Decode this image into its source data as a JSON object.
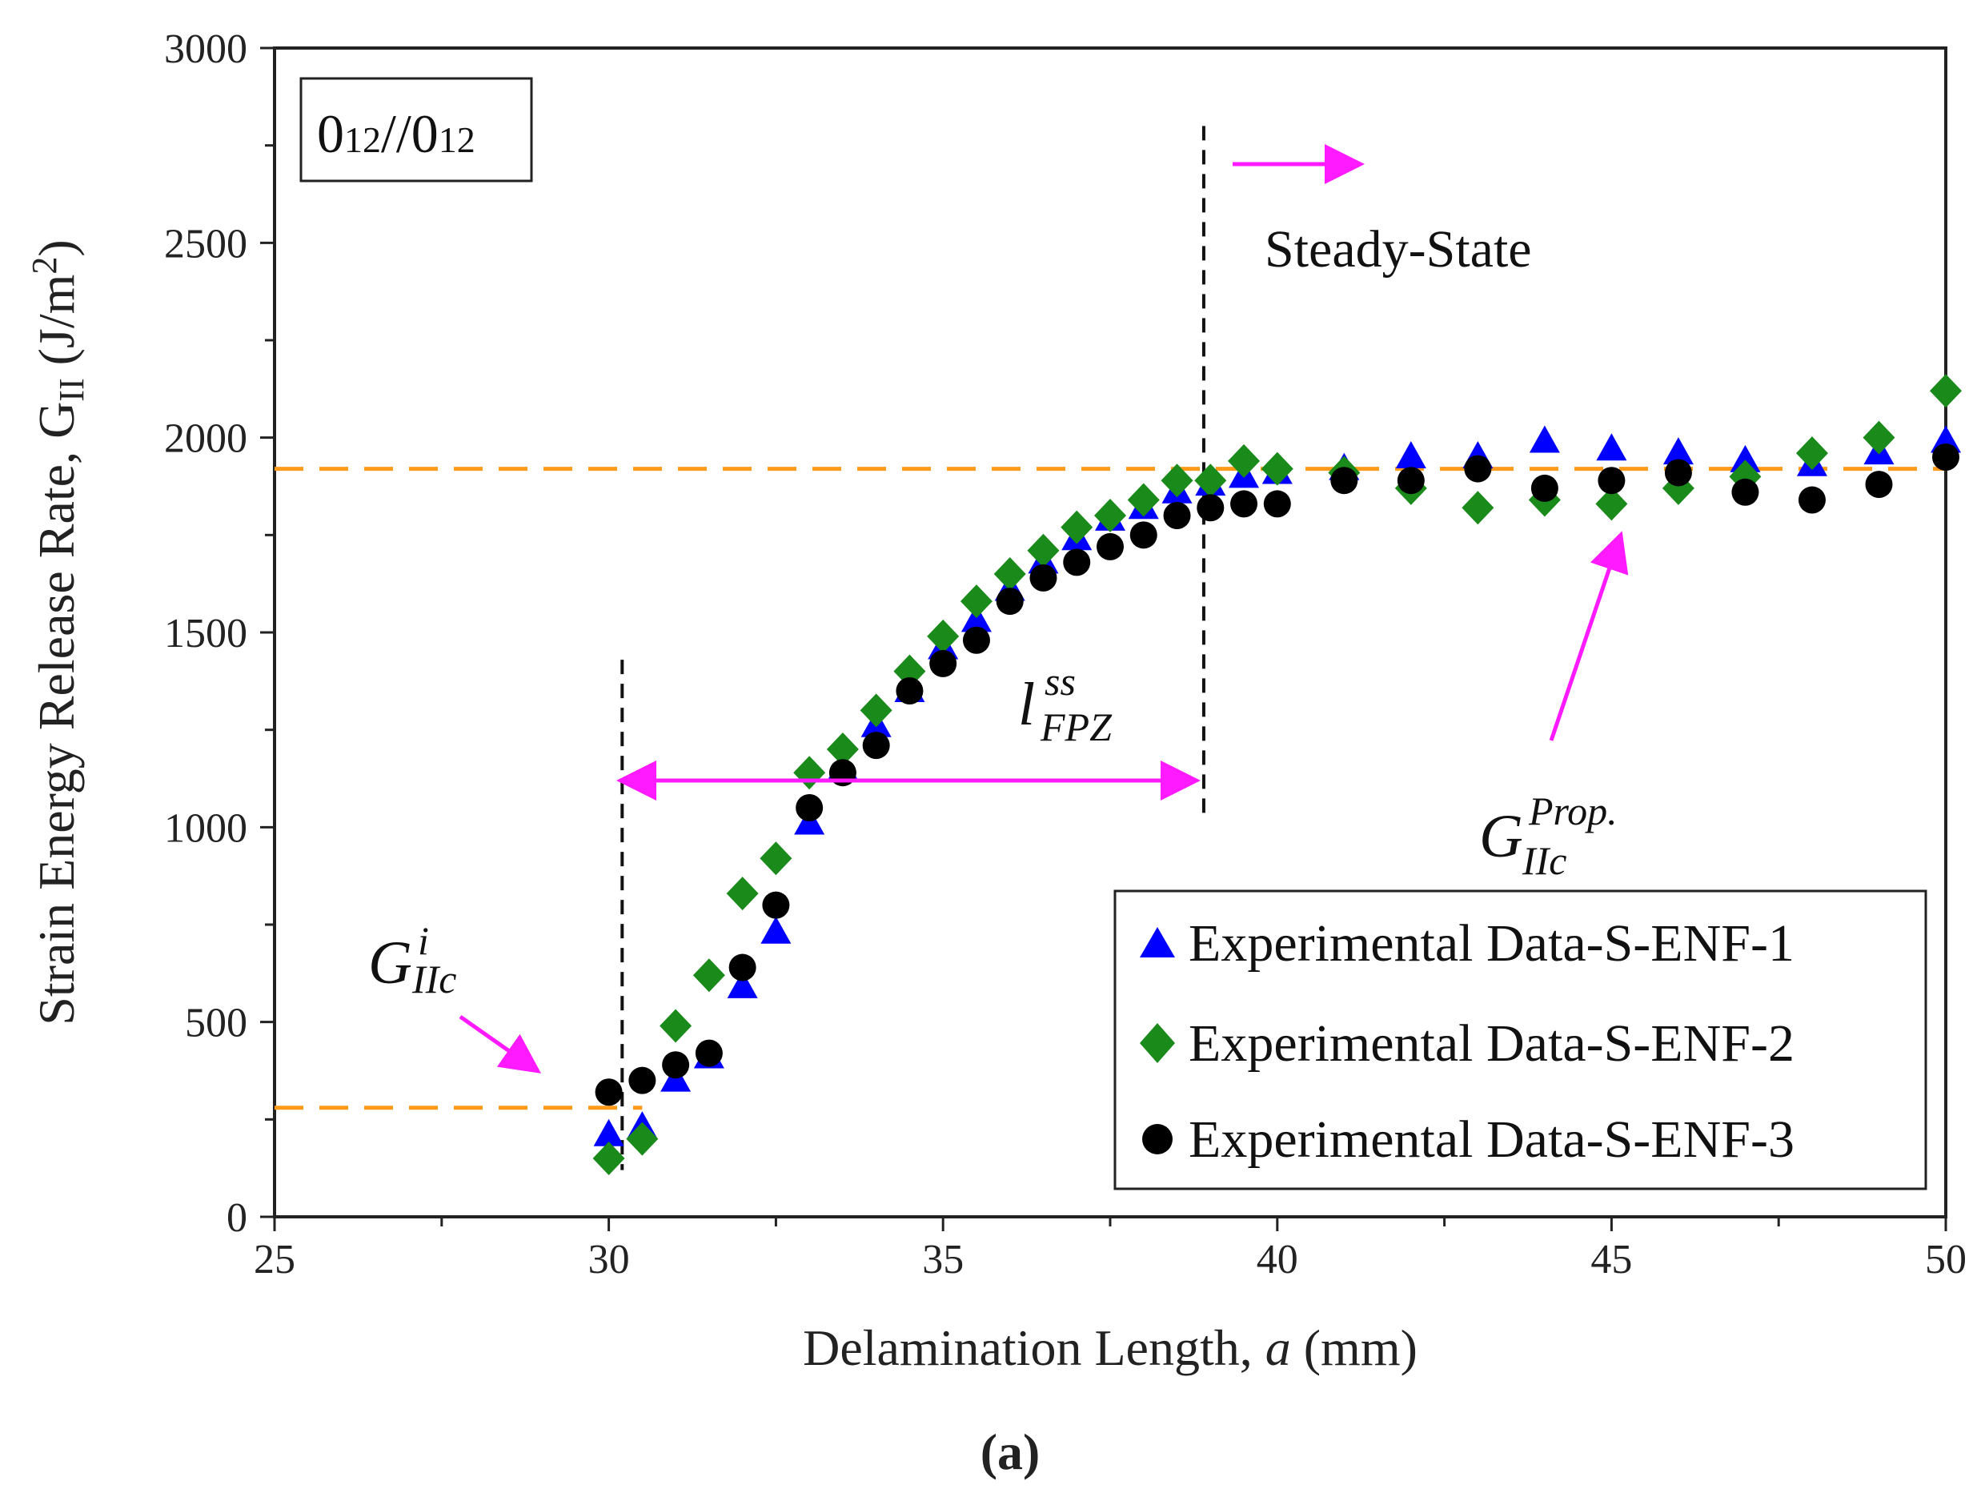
{
  "chart_data": {
    "type": "scatter",
    "caption": "(a)",
    "xlabel": {
      "main": "Delamination Length, ",
      "var": "a",
      "unit": " (mm)"
    },
    "ylabel": {
      "main": "Strain Energy Release Rate, G",
      "sub": "II",
      "unit": " (J/m",
      "sup": "2",
      "close": ")"
    },
    "xlim": [
      25,
      50
    ],
    "ylim": [
      0,
      3000
    ],
    "x_ticks": [
      25,
      30,
      35,
      40,
      45,
      50
    ],
    "y_ticks": [
      0,
      500,
      1000,
      1500,
      2000,
      2500,
      3000
    ],
    "layup_label": {
      "a": "0",
      "a_sub": "12",
      "sep": "//",
      "b": "0",
      "b_sub": "12"
    },
    "annotations": {
      "steady_state": "Steady-State",
      "g_init": {
        "base": "G",
        "sup": "i",
        "sub": "IIc"
      },
      "g_prop": {
        "base": "G",
        "sup": "Prop.",
        "sub": "IIc"
      },
      "l_fpz": {
        "base": "l",
        "sup": "ss",
        "sub": "FPZ"
      }
    },
    "reference_lines": {
      "g_init_level": 280,
      "g_prop_level": 1920,
      "initiation_x": 30.2,
      "steady_state_x": 38.9
    },
    "colors": {
      "series1": "#0000ff",
      "series2": "#1a8a1a",
      "series3": "#000000",
      "reference": "#ff9a1a",
      "arrow": "#ff1aff"
    },
    "series": [
      {
        "name": "Experimental Data-S-ENF-1",
        "marker": "triangle",
        "x": [
          30,
          30.5,
          31,
          31.5,
          32,
          32.5,
          33,
          33.5,
          34,
          34.5,
          35,
          35.5,
          36,
          36.5,
          37,
          37.5,
          38,
          38.5,
          39,
          39.5,
          40,
          41,
          42,
          43,
          44,
          45,
          46,
          47,
          48,
          49,
          50
        ],
        "y": [
          210,
          230,
          350,
          410,
          590,
          730,
          1010,
          1150,
          1260,
          1350,
          1460,
          1530,
          1610,
          1680,
          1740,
          1790,
          1820,
          1860,
          1880,
          1900,
          1910,
          1920,
          1950,
          1950,
          1990,
          1970,
          1960,
          1940,
          1930,
          1960,
          1990
        ]
      },
      {
        "name": "Experimental Data-S-ENF-2",
        "marker": "diamond",
        "x": [
          30,
          30.5,
          31,
          31.5,
          32,
          32.5,
          33,
          33.5,
          34,
          34.5,
          35,
          35.5,
          36,
          36.5,
          37,
          37.5,
          38,
          38.5,
          39,
          39.5,
          40,
          41,
          42,
          43,
          44,
          45,
          46,
          47,
          48,
          49,
          50
        ],
        "y": [
          150,
          200,
          490,
          620,
          830,
          920,
          1140,
          1200,
          1300,
          1400,
          1490,
          1580,
          1650,
          1710,
          1770,
          1800,
          1840,
          1890,
          1890,
          1940,
          1920,
          1910,
          1870,
          1820,
          1840,
          1830,
          1870,
          1900,
          1960,
          2000,
          2120
        ]
      },
      {
        "name": "Experimental Data-S-ENF-3",
        "marker": "circle",
        "x": [
          30,
          30.5,
          31,
          31.5,
          32,
          32.5,
          33,
          33.5,
          34,
          34.5,
          35,
          35.5,
          36,
          36.5,
          37,
          37.5,
          38,
          38.5,
          39,
          39.5,
          40,
          41,
          42,
          43,
          44,
          45,
          46,
          47,
          48,
          49,
          50
        ],
        "y": [
          320,
          350,
          390,
          420,
          640,
          800,
          1050,
          1140,
          1210,
          1350,
          1420,
          1480,
          1580,
          1640,
          1680,
          1720,
          1750,
          1800,
          1820,
          1830,
          1830,
          1890,
          1890,
          1920,
          1870,
          1890,
          1910,
          1860,
          1840,
          1880,
          1950
        ]
      }
    ],
    "legend_position": "lower-right"
  }
}
